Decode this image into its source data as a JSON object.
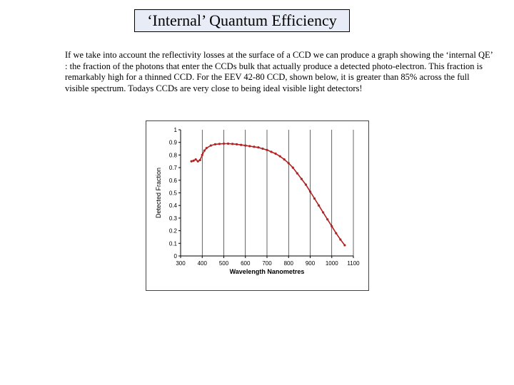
{
  "slide": {
    "title": "‘Internal’ Quantum Efficiency",
    "paragraph": "If we take into account the reflectivity losses at the surface of a CCD we can produce a graph showing the ‘internal QE’ : the fraction of the photons that enter the CCDs bulk that actually produce a detected photo-electron. This fraction is remarkably high for a thinned CCD. For the EEV 42-80 CCD, shown below, it is greater than 85% across the full visible spectrum. Todays CCDs are very close to being ideal visible light detectors!"
  },
  "chart_data": {
    "type": "line",
    "xlabel": "Wavelength Nanometres",
    "ylabel": "Detected Fraction",
    "xlim": [
      300,
      1100
    ],
    "ylim": [
      0,
      1
    ],
    "x_ticks": [
      300,
      400,
      500,
      600,
      700,
      800,
      900,
      1000,
      1100
    ],
    "x_tick_labels": [
      "300",
      "400",
      "500",
      "600",
      "700",
      "800",
      "900",
      "1000",
      "1100"
    ],
    "y_ticks": [
      0,
      0.1,
      0.2,
      0.3,
      0.4,
      0.5,
      0.6,
      0.7,
      0.8,
      0.9,
      1
    ],
    "y_tick_labels": [
      "0",
      "0.1",
      "0.2",
      "0.3",
      "0.4",
      "0.5",
      "0.6",
      "0.7",
      "0.8",
      "0.9",
      "1"
    ],
    "grid": {
      "vertical": true,
      "horizontal": false
    },
    "line_color": "#b22222",
    "series": [
      {
        "x": [
          350,
          360,
          370,
          380,
          390,
          400,
          410,
          420,
          440,
          460,
          480,
          500,
          520,
          540,
          560,
          580,
          600,
          620,
          640,
          660,
          680,
          700,
          720,
          740,
          760,
          780,
          800,
          820,
          840,
          860,
          880,
          900,
          920,
          940,
          960,
          980,
          1000,
          1020,
          1040,
          1060
        ],
        "y": [
          0.75,
          0.755,
          0.765,
          0.75,
          0.76,
          0.8,
          0.835,
          0.855,
          0.875,
          0.885,
          0.888,
          0.89,
          0.89,
          0.888,
          0.885,
          0.88,
          0.875,
          0.87,
          0.865,
          0.86,
          0.85,
          0.84,
          0.825,
          0.81,
          0.79,
          0.765,
          0.735,
          0.7,
          0.655,
          0.61,
          0.565,
          0.51,
          0.455,
          0.4,
          0.345,
          0.29,
          0.235,
          0.18,
          0.13,
          0.085
        ]
      }
    ]
  }
}
